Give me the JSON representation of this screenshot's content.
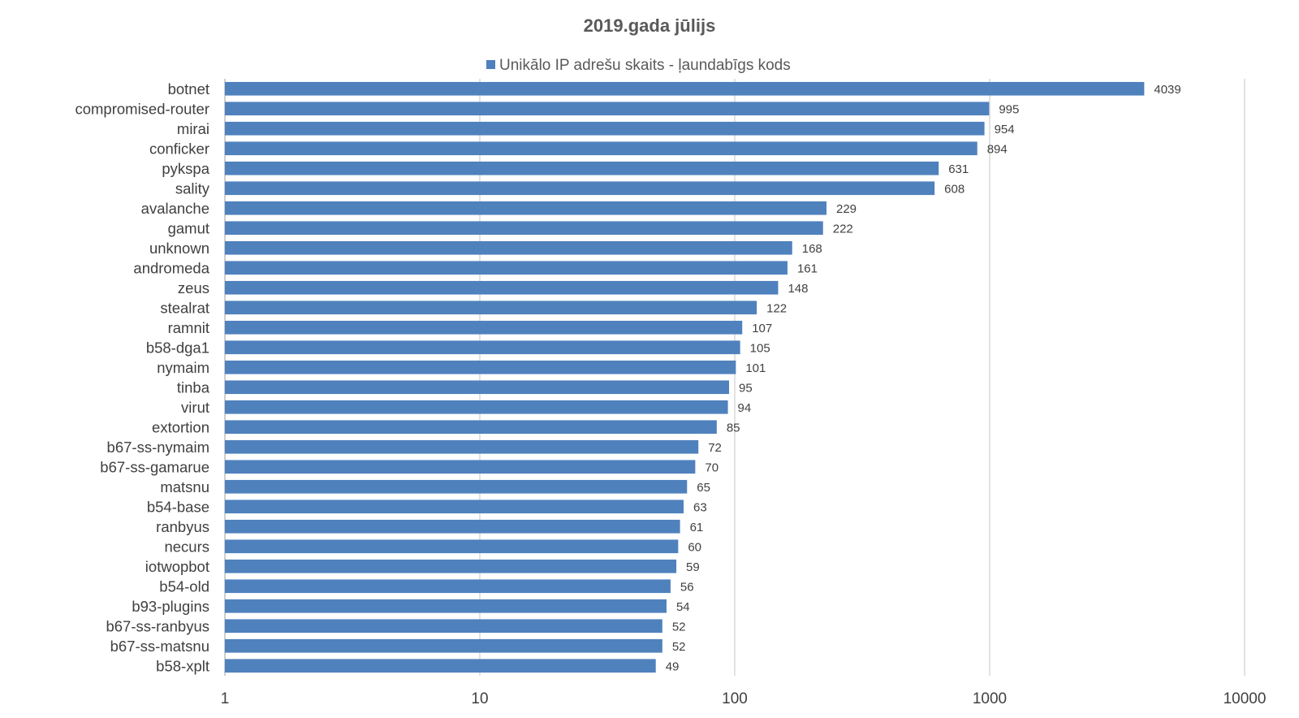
{
  "chart_data": {
    "type": "bar",
    "orientation": "horizontal",
    "title": "2019.gada jūlijs",
    "legend": {
      "position": "top",
      "entries": [
        "Unikālo IP adrešu skaits -  ļaundabīgs kods"
      ]
    },
    "x_scale": "log",
    "xlim": [
      1,
      10000
    ],
    "x_ticks": [
      "1",
      "10",
      "100",
      "1000",
      "10000"
    ],
    "grid": true,
    "color": "#4f81bd",
    "series": [
      {
        "name": "Unikālo IP adrešu skaits -  ļaundabīgs kods",
        "values": [
          4039,
          995,
          954,
          894,
          631,
          608,
          229,
          222,
          168,
          161,
          148,
          122,
          107,
          105,
          101,
          95,
          94,
          85,
          72,
          70,
          65,
          63,
          61,
          60,
          59,
          56,
          54,
          52,
          52,
          49
        ]
      }
    ],
    "categories": [
      "botnet",
      "compromised-router",
      "mirai",
      "conficker",
      "pykspa",
      "sality",
      "avalanche",
      "gamut",
      "unknown",
      "andromeda",
      "zeus",
      "stealrat",
      "ramnit",
      "b58-dga1",
      "nymaim",
      "tinba",
      "virut",
      "extortion",
      "b67-ss-nymaim",
      "b67-ss-gamarue",
      "matsnu",
      "b54-base",
      "ranbyus",
      "necurs",
      "iotwopbot",
      "b54-old",
      "b93-plugins",
      "b67-ss-ranbyus",
      "b67-ss-matsnu",
      "b58-xplt"
    ]
  }
}
